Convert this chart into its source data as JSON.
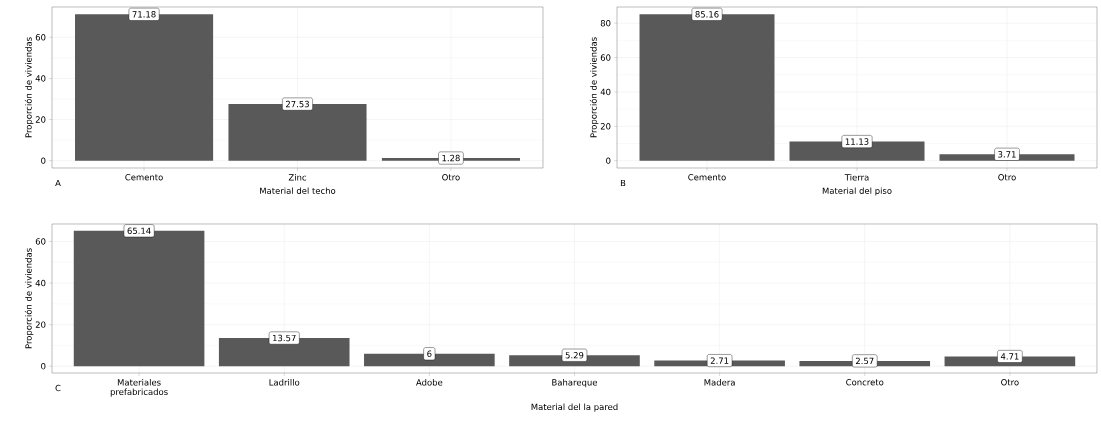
{
  "chart_data": [
    {
      "type": "bar",
      "categories": [
        "Cemento",
        "Zinc",
        "Otro"
      ],
      "values": [
        71.18,
        27.53,
        1.28
      ],
      "color": "#595959",
      "xlabel": "Material del techo",
      "ylabel": "Proporción de viviendas",
      "ylim": [
        -3.56,
        74.74
      ],
      "yticks": [
        0,
        20,
        40,
        60
      ],
      "grid": true,
      "data_labels": true,
      "annotations": [
        "A"
      ]
    },
    {
      "type": "bar",
      "categories": [
        "Cemento",
        "Tierra",
        "Otro"
      ],
      "values": [
        85.16,
        11.13,
        3.71
      ],
      "color": "#595959",
      "xlabel": "Material del piso",
      "ylabel": "Proporción de viviendas",
      "ylim": [
        -4.26,
        89.42
      ],
      "yticks": [
        0,
        20,
        40,
        60,
        80
      ],
      "grid": true,
      "data_labels": true,
      "annotations": [
        "B"
      ]
    },
    {
      "type": "bar",
      "categories": [
        "Materiales prefabricados",
        "Ladrillo",
        "Adobe",
        "Bahareque",
        "Madera",
        "Concreto",
        "Otro"
      ],
      "values": [
        65.14,
        13.57,
        6,
        5.29,
        2.71,
        2.57,
        4.71
      ],
      "color": "#595959",
      "xlabel": "Material del la pared",
      "ylabel": "Proporción de viviendas",
      "ylim": [
        -3.26,
        68.4
      ],
      "yticks": [
        0,
        20,
        40,
        60
      ],
      "grid": true,
      "data_labels": true,
      "annotations": [
        "C"
      ]
    }
  ]
}
